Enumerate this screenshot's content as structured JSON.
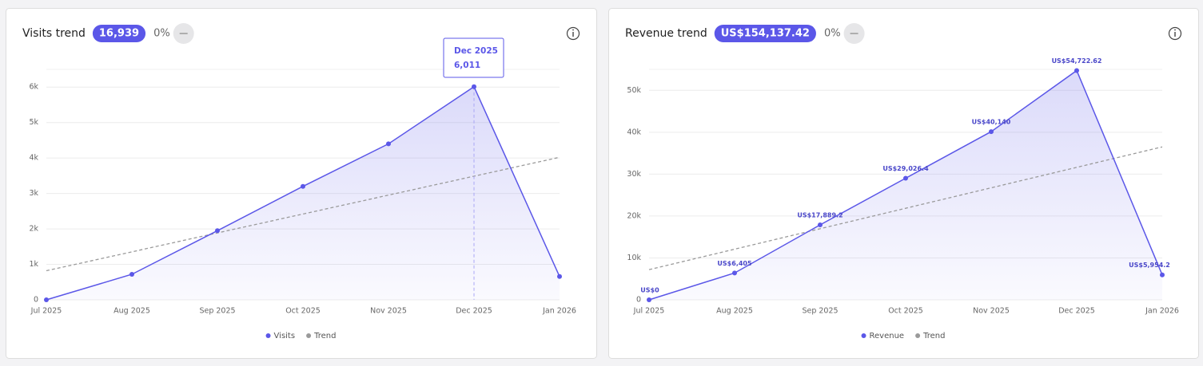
{
  "chart_data": [
    {
      "type": "line",
      "title": "Visits trend",
      "badge": "16,939",
      "change": "0%",
      "categories": [
        "Jul 2025",
        "Aug 2025",
        "Sep 2025",
        "Oct 2025",
        "Nov 2025",
        "Dec 2025",
        "Jan 2026"
      ],
      "series": [
        {
          "name": "Visits",
          "color": "#5b57e8",
          "values": [
            0,
            720,
            1950,
            3200,
            4400,
            6011,
            658
          ]
        },
        {
          "name": "Trend",
          "color": "#9a9a9a",
          "values": [
            820,
            1353,
            1887,
            2420,
            2953,
            3487,
            4020
          ]
        }
      ],
      "ylim": [
        0,
        6500
      ],
      "yticks": [
        0,
        {
          "value": 1000,
          "label": "1k"
        },
        {
          "value": 2000,
          "label": "2k"
        },
        {
          "value": 3000,
          "label": "3k"
        },
        {
          "value": 4000,
          "label": "4k"
        },
        {
          "value": 5000,
          "label": "5k"
        },
        {
          "value": 6000,
          "label": "6k"
        }
      ],
      "grid": true,
      "tooltip": {
        "x": "Dec 2025",
        "value_label": "6,011"
      }
    },
    {
      "type": "line",
      "title": "Revenue trend",
      "badge": "US$154,137.42",
      "change": "0%",
      "categories": [
        "Jul 2025",
        "Aug 2025",
        "Sep 2025",
        "Oct 2025",
        "Nov 2025",
        "Dec 2025",
        "Jan 2026"
      ],
      "series": [
        {
          "name": "Revenue",
          "color": "#5b57e8",
          "values": [
            0,
            6405,
            17889.2,
            29026.4,
            40140,
            54722.62,
            5954.2
          ],
          "value_labels": [
            "US$0",
            "US$6,405",
            "US$17,889.2",
            "US$29,026.4",
            "US$40,140",
            "US$54,722.62",
            "US$5,954.2"
          ]
        },
        {
          "name": "Trend",
          "color": "#9a9a9a",
          "values": [
            7200,
            12083,
            16967,
            21850,
            26733,
            31617,
            36500
          ]
        }
      ],
      "ylim": [
        0,
        55000
      ],
      "yticks": [
        0,
        {
          "value": 10000,
          "label": "10k"
        },
        {
          "value": 20000,
          "label": "20k"
        },
        {
          "value": 30000,
          "label": "30k"
        },
        {
          "value": 40000,
          "label": "40k"
        },
        {
          "value": 50000,
          "label": "50k"
        }
      ],
      "grid": true
    }
  ]
}
